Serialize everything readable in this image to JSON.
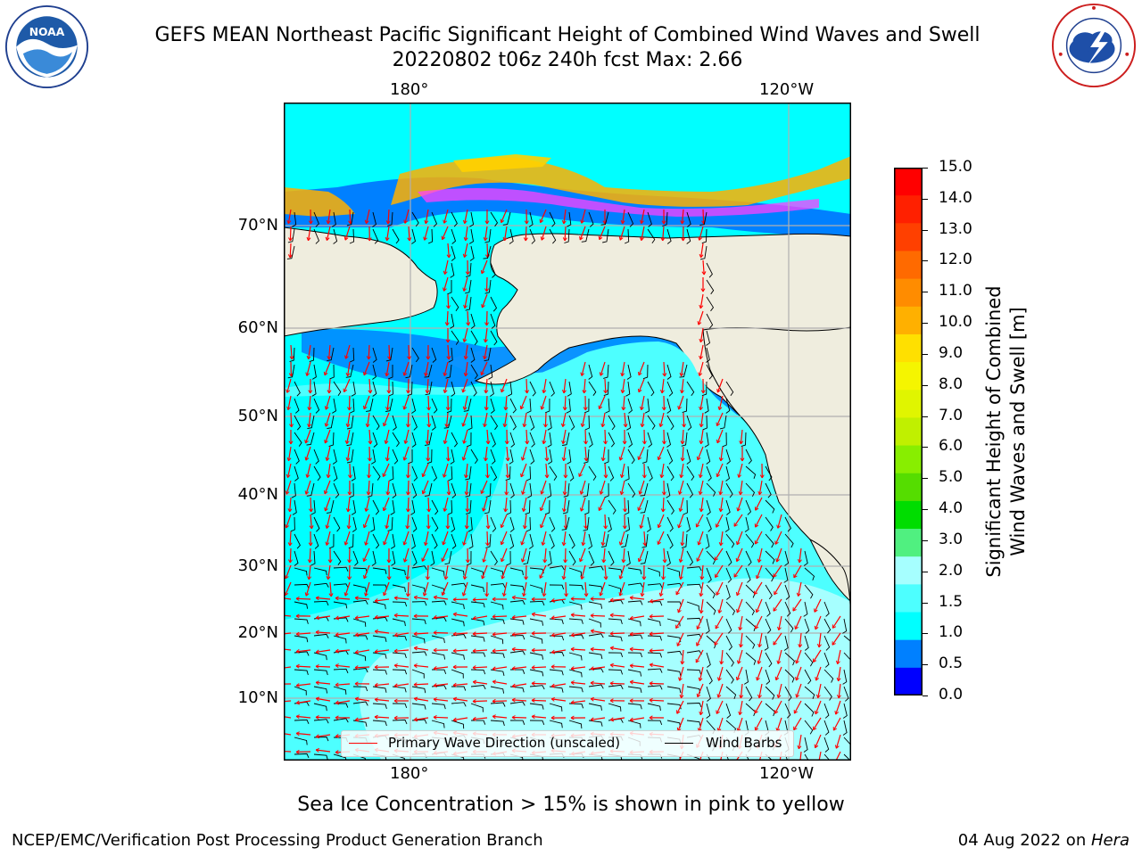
{
  "header": {
    "title_line1": "GEFS MEAN Northeast Pacific Significant Height of Combined Wind Waves and Swell",
    "title_line2": "20220802 t06z 240h fcst   Max: 2.66"
  },
  "logos": {
    "noaa": {
      "icon": "noaa-logo-icon",
      "text": "NOAA",
      "ring_text": "NATIONAL OCEANIC AND ATMOSPHERIC ADMINISTRATION · U.S. DEPARTMENT OF COMMERCE"
    },
    "nws": {
      "icon": "nws-logo-icon",
      "ring_text": "NATIONAL WEATHER SERVICE"
    }
  },
  "map": {
    "top_lon_labels": [
      "180°",
      "120°W"
    ],
    "bottom_lon_labels": [
      "180°",
      "120°W"
    ],
    "lat_labels": [
      "70°N",
      "60°N",
      "50°N",
      "40°N",
      "30°N",
      "20°N",
      "10°N"
    ],
    "colors": {
      "land": "#efedde",
      "ocean_low": "#00ffff",
      "ocean_mid": "#4dffff",
      "ocean_high": "#a6ffff",
      "grid": "#b0b0b0",
      "wave_arrow": "#ff0000",
      "wind_barb": "#000000"
    }
  },
  "colorbar": {
    "ticks": [
      "15.0",
      "14.0",
      "13.0",
      "12.0",
      "11.0",
      "10.0",
      "9.0",
      "8.0",
      "7.0",
      "6.0",
      "5.0",
      "4.0",
      "3.0",
      "2.0",
      "1.5",
      "1.0",
      "0.5",
      "0.0"
    ],
    "label_line1": "Significant Height of Combined",
    "label_line2": "Wind Waves and Swell [m]",
    "colors": [
      "#ff0000",
      "#ff2000",
      "#ff4000",
      "#ff6a00",
      "#ff8c00",
      "#ffb000",
      "#ffe000",
      "#f5f500",
      "#e0f500",
      "#c0f000",
      "#88ee00",
      "#55dd00",
      "#00dd00",
      "#50f080",
      "#a6ffff",
      "#4dffff",
      "#00ffff",
      "#0080ff",
      "#0000ff"
    ]
  },
  "legend": {
    "wave_label": "Primary Wave Direction (unscaled)",
    "wind_label": "Wind Barbs"
  },
  "caption": "Sea Ice Concentration > 15% is shown in pink to yellow",
  "footer": {
    "left": "NCEP/EMC/Verification Post Processing Product Generation Branch",
    "right_date": "04 Aug 2022 on ",
    "right_host": "Hera"
  }
}
